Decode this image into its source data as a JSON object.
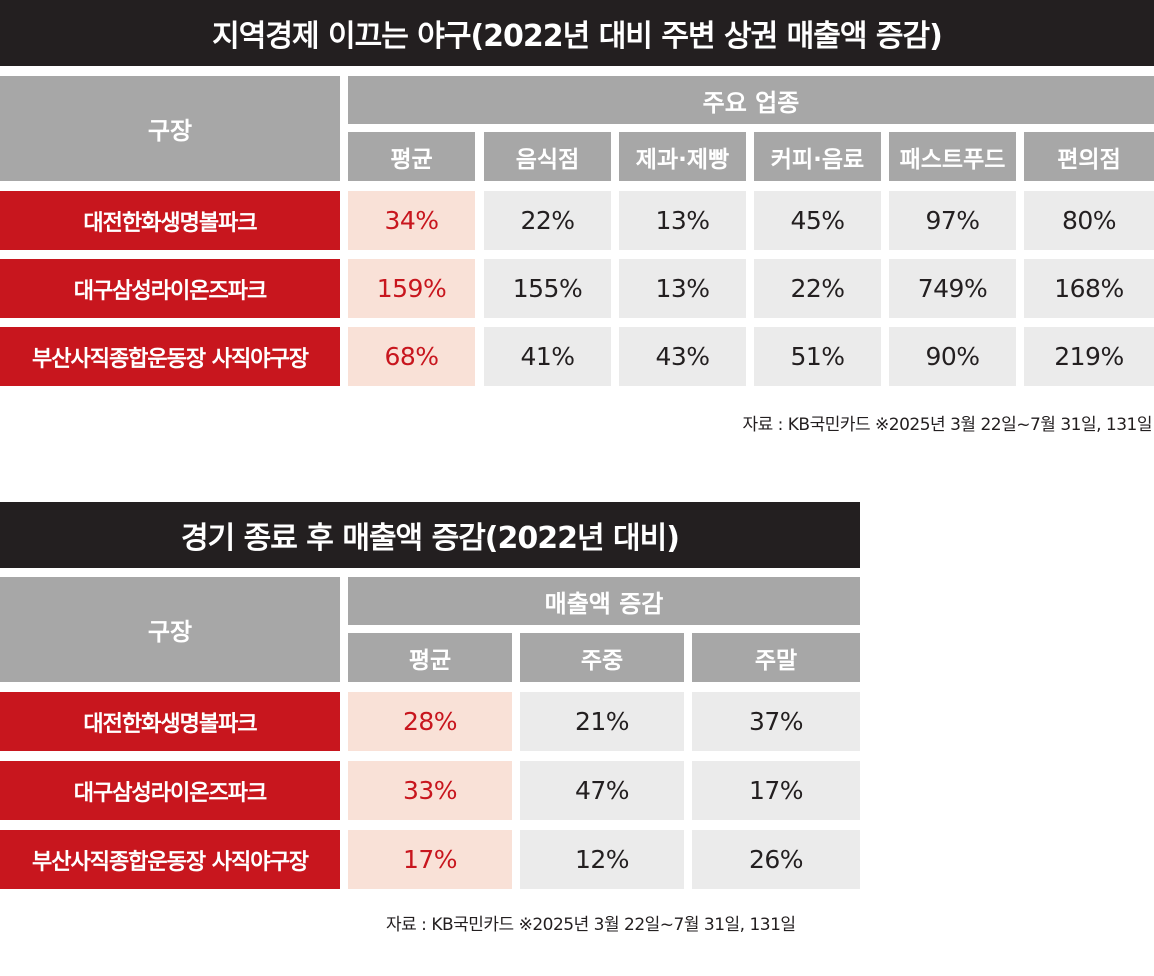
{
  "table1": {
    "title": "지역경제 이끄는 야구(2022년 대비 주변 상권 매출액 증감)",
    "stadium_header": "구장",
    "group_header": "주요 업종",
    "columns": [
      "평균",
      "음식점",
      "제과·제빵",
      "커피·음료",
      "패스트푸드",
      "편의점"
    ],
    "rows": [
      {
        "label": "대전한화생명볼파크",
        "values": [
          "34%",
          "22%",
          "13%",
          "45%",
          "97%",
          "80%"
        ]
      },
      {
        "label": "대구삼성라이온즈파크",
        "values": [
          "159%",
          "155%",
          "13%",
          "22%",
          "749%",
          "168%"
        ]
      },
      {
        "label": "부산사직종합운동장 사직야구장",
        "values": [
          "68%",
          "41%",
          "43%",
          "51%",
          "90%",
          "219%"
        ]
      }
    ],
    "source": "자료 : KB국민카드 ※2025년 3월 22일~7월 31일, 131일"
  },
  "table2": {
    "title": "경기 종료 후 매출액 증감(2022년 대비)",
    "stadium_header": "구장",
    "group_header": "매출액 증감",
    "columns": [
      "평균",
      "주중",
      "주말"
    ],
    "rows": [
      {
        "label": "대전한화생명볼파크",
        "values": [
          "28%",
          "21%",
          "37%"
        ]
      },
      {
        "label": "대구삼성라이온즈파크",
        "values": [
          "33%",
          "47%",
          "17%"
        ]
      },
      {
        "label": "부산사직종합운동장 사직야구장",
        "values": [
          "17%",
          "12%",
          "26%"
        ]
      }
    ],
    "source": "자료 : KB국민카드 ※2025년 3월 22일~7월 31일, 131일"
  },
  "colors": {
    "title_background": "#231f20",
    "header_gray": "#a7a7a7",
    "row_label_red": "#c8161e",
    "average_highlight": "#f9e1d7",
    "cell_gray": "#ebebeb"
  }
}
